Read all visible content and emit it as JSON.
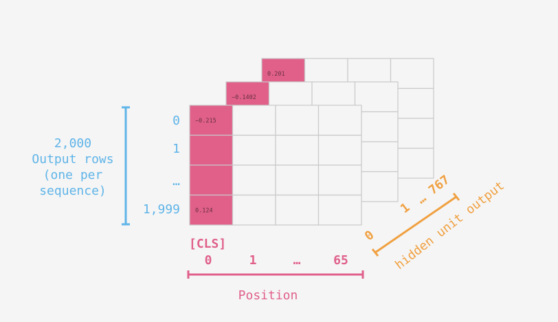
{
  "colors": {
    "background": "#f5f5f5",
    "accent_pink": "#e0608a",
    "row_blue": "#5fb4e8",
    "orange": "#f0a040",
    "grid": "#c9c9c9",
    "cell_text": "#6a3040"
  },
  "row_axis": {
    "title_lines": [
      "2,000",
      "Output rows",
      "(one per",
      "sequence)"
    ],
    "labels": [
      "0",
      "1",
      "…",
      "1,999"
    ]
  },
  "position_axis": {
    "cls_label": "[CLS]",
    "labels": [
      "0",
      "1",
      "…",
      "65"
    ],
    "title": "Position"
  },
  "hidden_axis": {
    "labels": [
      "0",
      "1",
      "… 767"
    ],
    "title": "hidden unit output"
  },
  "layers": {
    "back": {
      "cls_value": "0.201"
    },
    "middle": {
      "cls_value": "−0.1402"
    },
    "front": {
      "cls_values": [
        "−0.215",
        "",
        "",
        "0.124"
      ]
    }
  }
}
